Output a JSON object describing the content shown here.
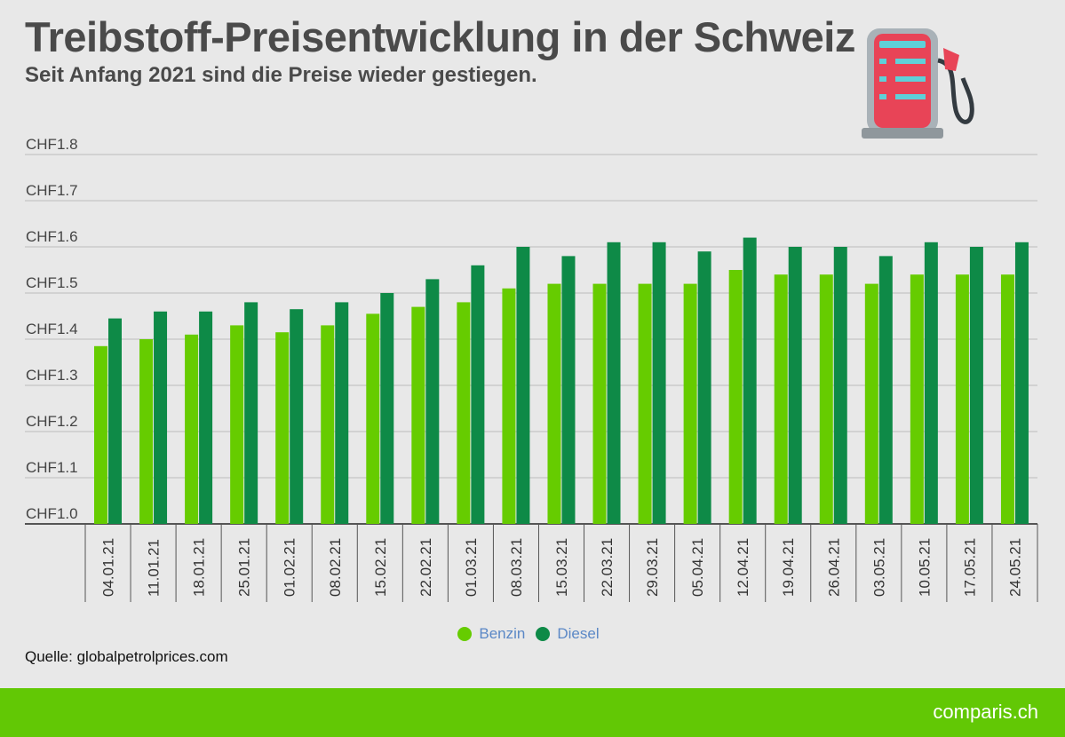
{
  "header": {
    "title": "Treibstoff-Preisentwicklung in der Schweiz",
    "subtitle": "Seit Anfang 2021 sind die Preise wieder gestiegen."
  },
  "icon": "fuel-pump-icon",
  "source": "Quelle: globalpetrolprices.com",
  "brand": "comparis.ch",
  "colors": {
    "benzin": "#66cc00",
    "diesel": "#0e8a47",
    "footer": "#62c805",
    "legend_text": "#5b88c6"
  },
  "chart_data": {
    "type": "bar",
    "title": "Treibstoff-Preisentwicklung in der Schweiz",
    "subtitle": "Seit Anfang 2021 sind die Preise wieder gestiegen.",
    "categories": [
      "04.01.21",
      "11.01.21",
      "18.01.21",
      "25.01.21",
      "01.02.21",
      "08.02.21",
      "15.02.21",
      "22.02.21",
      "01.03.21",
      "08.03.21",
      "15.03.21",
      "22.03.21",
      "29.03.21",
      "05.04.21",
      "12.04.21",
      "19.04.21",
      "26.04.21",
      "03.05.21",
      "10.05.21",
      "17.05.21",
      "24.05.21"
    ],
    "series": [
      {
        "name": "Benzin",
        "values": [
          1.385,
          1.4,
          1.41,
          1.43,
          1.415,
          1.43,
          1.455,
          1.47,
          1.48,
          1.51,
          1.52,
          1.52,
          1.52,
          1.52,
          1.55,
          1.54,
          1.54,
          1.52,
          1.54,
          1.54,
          1.54
        ]
      },
      {
        "name": "Diesel",
        "values": [
          1.445,
          1.46,
          1.46,
          1.48,
          1.465,
          1.48,
          1.5,
          1.53,
          1.56,
          1.6,
          1.58,
          1.61,
          1.61,
          1.59,
          1.62,
          1.6,
          1.6,
          1.58,
          1.61,
          1.6,
          1.61
        ]
      }
    ],
    "ylim": [
      1.0,
      1.8
    ],
    "yticks": [
      "CHF1.0",
      "CHF1.1",
      "CHF1.2",
      "CHF1.3",
      "CHF1.4",
      "CHF1.5",
      "CHF1.6",
      "CHF1.7",
      "CHF1.8"
    ],
    "xlabel": "",
    "ylabel": "",
    "grid": true,
    "legend": "bottom-center"
  },
  "legend": {
    "items": [
      "Benzin",
      "Diesel"
    ]
  }
}
